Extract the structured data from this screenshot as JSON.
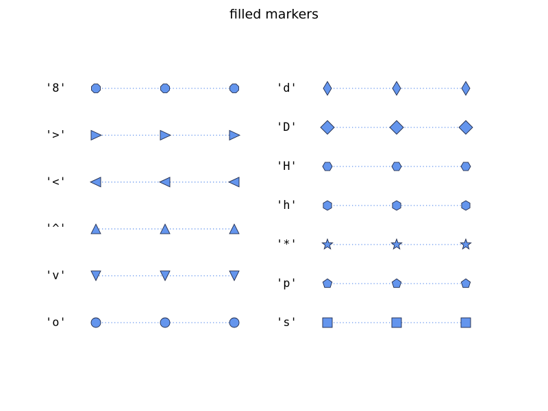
{
  "chart_data": {
    "type": "scatter",
    "title": "filled markers",
    "xlabel": "",
    "ylabel": "",
    "grid": false,
    "x": [
      0,
      1,
      2
    ],
    "colors": {
      "marker_face": "#6495ed",
      "marker_edge": "#1f2a4a",
      "line": "#6495ed"
    },
    "panels": [
      {
        "name": "left",
        "rows": [
          {
            "label": "'8'",
            "marker": "octagon"
          },
          {
            "label": "'>'",
            "marker": "triangle-right"
          },
          {
            "label": "'<'",
            "marker": "triangle-left"
          },
          {
            "label": "'^'",
            "marker": "triangle-up"
          },
          {
            "label": "'v'",
            "marker": "triangle-down"
          },
          {
            "label": "'o'",
            "marker": "circle"
          }
        ]
      },
      {
        "name": "right",
        "rows": [
          {
            "label": "'d'",
            "marker": "thin-diamond"
          },
          {
            "label": "'D'",
            "marker": "diamond"
          },
          {
            "label": "'H'",
            "marker": "hexagon-flat"
          },
          {
            "label": "'h'",
            "marker": "hexagon-pointy"
          },
          {
            "label": "'*'",
            "marker": "star"
          },
          {
            "label": "'p'",
            "marker": "pentagon"
          },
          {
            "label": "'s'",
            "marker": "square"
          }
        ]
      }
    ]
  }
}
